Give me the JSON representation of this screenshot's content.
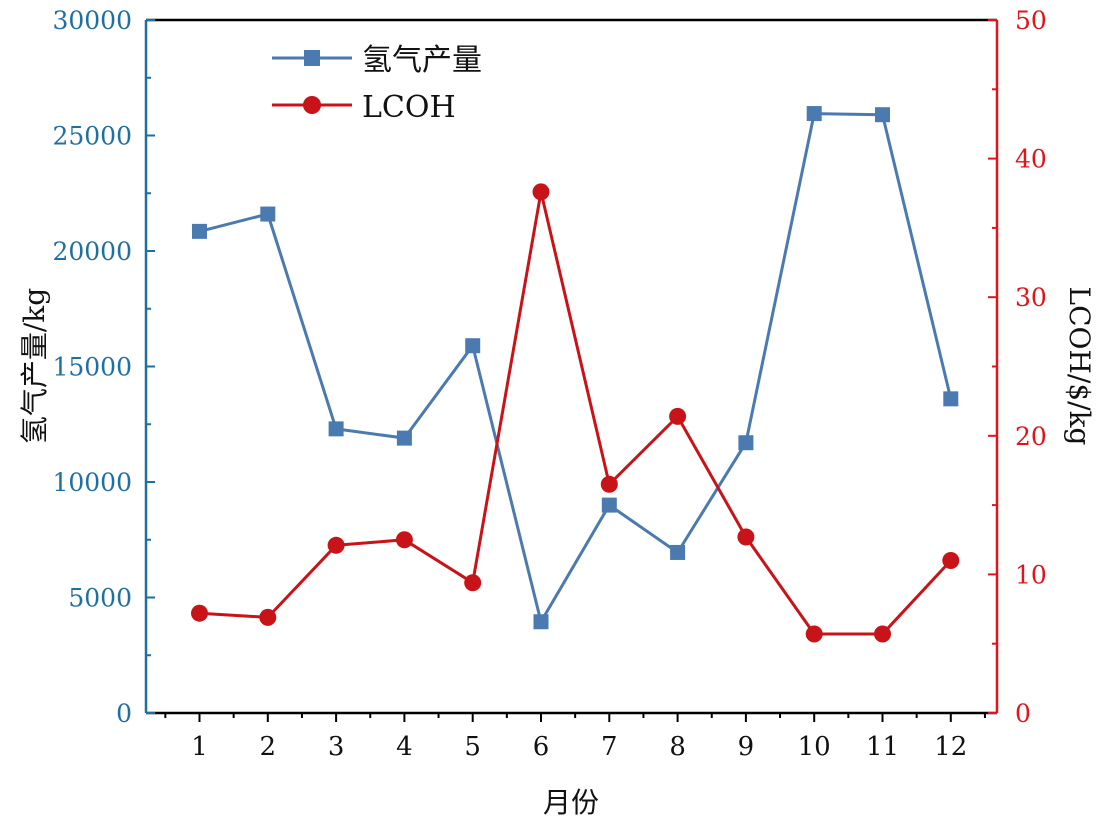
{
  "chart_data": {
    "type": "line",
    "x": [
      1,
      2,
      3,
      4,
      5,
      6,
      7,
      8,
      9,
      10,
      11,
      12
    ],
    "xlabel": "月份",
    "ylabel_left": "氢气产量/kg",
    "ylabel_right": "LCOH/$/kg",
    "ylim_left": [
      0,
      30000
    ],
    "ylim_right": [
      0,
      50
    ],
    "yticks_left": [
      0,
      5000,
      10000,
      15000,
      20000,
      25000,
      30000
    ],
    "yticks_right": [
      0,
      10,
      20,
      30,
      40,
      50
    ],
    "grid": false,
    "legend_position": "top-left",
    "series": [
      {
        "name": "氢气产量",
        "axis": "left",
        "marker": "square",
        "color": "#4a7ab0",
        "values": [
          20850,
          21600,
          12300,
          11900,
          15900,
          3950,
          9000,
          6950,
          11700,
          25950,
          25900,
          13600
        ]
      },
      {
        "name": "LCOH",
        "axis": "right",
        "marker": "circle",
        "color": "#c81418",
        "values": [
          7.2,
          6.9,
          12.1,
          12.5,
          9.4,
          37.6,
          16.5,
          21.4,
          12.7,
          5.7,
          5.7,
          11.0
        ]
      }
    ]
  },
  "colors": {
    "left_axis": "#1f6fa0",
    "right_axis": "#e0141a",
    "frame": "#000000"
  }
}
